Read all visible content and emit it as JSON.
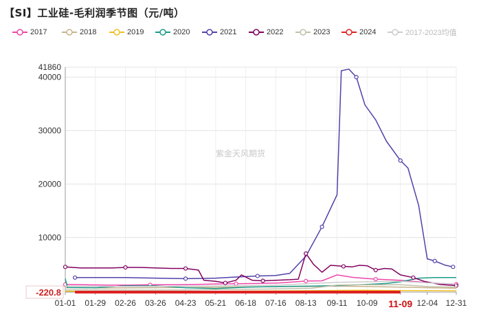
{
  "title": "【SI】工业硅-毛利润季节图（元/吨）",
  "watermark": "紫金天风期货",
  "chart_data": {
    "type": "line",
    "title": "【SI】工业硅-毛利润季节图（元/吨）",
    "xlabel": "",
    "ylabel": "",
    "ylim": [
      -220.8,
      41860
    ],
    "y_ticks": [
      "41860",
      "40000",
      "30000",
      "20000",
      "10000"
    ],
    "y_min_label": "-220.8",
    "x_ticks": [
      "01-01",
      "01-29",
      "02-26",
      "03-26",
      "04-23",
      "05-21",
      "06-18",
      "07-16",
      "08-13",
      "09-11",
      "10-09",
      "11-09",
      "12-04",
      "12-31"
    ],
    "x_ticks_doy": [
      1,
      29,
      57,
      85,
      113,
      141,
      169,
      197,
      225,
      254,
      282,
      313,
      338,
      365
    ],
    "highlight_x_label": "11-09",
    "highlight_x_doy": 313,
    "grid": true,
    "legend_position": "top",
    "series": [
      {
        "name": "2017",
        "color": "#ee44aa",
        "marker": true,
        "points": [
          [
            1,
            1200
          ],
          [
            20,
            1150
          ],
          [
            40,
            1100
          ],
          [
            60,
            1100
          ],
          [
            80,
            1150
          ],
          [
            100,
            1150
          ],
          [
            120,
            1200
          ],
          [
            141,
            1300
          ],
          [
            160,
            1350
          ],
          [
            180,
            1400
          ],
          [
            200,
            1500
          ],
          [
            215,
            1700
          ],
          [
            225,
            1850
          ],
          [
            240,
            1900
          ],
          [
            254,
            3000
          ],
          [
            270,
            2500
          ],
          [
            290,
            2200
          ],
          [
            313,
            2000
          ],
          [
            330,
            1700
          ],
          [
            350,
            1400
          ],
          [
            365,
            1250
          ]
        ]
      },
      {
        "name": "2018",
        "color": "#c8b48c",
        "marker": false,
        "points": [
          [
            1,
            600
          ],
          [
            40,
            550
          ],
          [
            80,
            600
          ],
          [
            120,
            650
          ],
          [
            141,
            700
          ],
          [
            170,
            750
          ],
          [
            200,
            800
          ],
          [
            230,
            850
          ],
          [
            254,
            900
          ],
          [
            280,
            850
          ],
          [
            313,
            700
          ],
          [
            340,
            600
          ],
          [
            365,
            500
          ]
        ]
      },
      {
        "name": "2019",
        "color": "#f0c020",
        "marker": false,
        "points": [
          [
            1,
            -50
          ],
          [
            40,
            -80
          ],
          [
            80,
            -60
          ],
          [
            120,
            -100
          ],
          [
            141,
            -50
          ],
          [
            170,
            -30
          ],
          [
            200,
            0
          ],
          [
            230,
            50
          ],
          [
            254,
            100
          ],
          [
            280,
            120
          ],
          [
            313,
            80
          ],
          [
            340,
            50
          ],
          [
            365,
            30
          ]
        ]
      },
      {
        "name": "2020",
        "color": "#1a9a8a",
        "marker": false,
        "points": [
          [
            1,
            2300
          ],
          [
            3,
            650
          ],
          [
            30,
            600
          ],
          [
            57,
            950
          ],
          [
            85,
            950
          ],
          [
            113,
            600
          ],
          [
            141,
            450
          ],
          [
            170,
            700
          ],
          [
            200,
            850
          ],
          [
            230,
            900
          ],
          [
            254,
            1000
          ],
          [
            280,
            1200
          ],
          [
            300,
            1400
          ],
          [
            313,
            1700
          ],
          [
            330,
            2400
          ],
          [
            345,
            2500
          ],
          [
            365,
            2500
          ]
        ]
      },
      {
        "name": "2021",
        "color": "#5040a8",
        "marker": true,
        "points": [
          [
            10,
            2500
          ],
          [
            30,
            2500
          ],
          [
            57,
            2500
          ],
          [
            85,
            2400
          ],
          [
            113,
            2300
          ],
          [
            130,
            2350
          ],
          [
            141,
            2400
          ],
          [
            160,
            2600
          ],
          [
            180,
            2800
          ],
          [
            197,
            2900
          ],
          [
            210,
            3300
          ],
          [
            225,
            6500
          ],
          [
            240,
            12000
          ],
          [
            254,
            18000
          ],
          [
            258,
            41200
          ],
          [
            265,
            41500
          ],
          [
            272,
            40000
          ],
          [
            280,
            34800
          ],
          [
            290,
            32000
          ],
          [
            300,
            28000
          ],
          [
            313,
            24400
          ],
          [
            320,
            23000
          ],
          [
            330,
            16000
          ],
          [
            338,
            6000
          ],
          [
            345,
            5600
          ],
          [
            355,
            4800
          ],
          [
            362,
            4500
          ]
        ]
      },
      {
        "name": "2022",
        "color": "#800060",
        "marker": true,
        "points": [
          [
            1,
            4500
          ],
          [
            15,
            4300
          ],
          [
            30,
            4300
          ],
          [
            45,
            4300
          ],
          [
            57,
            4400
          ],
          [
            70,
            4400
          ],
          [
            85,
            4300
          ],
          [
            100,
            4200
          ],
          [
            113,
            4200
          ],
          [
            125,
            3900
          ],
          [
            130,
            2000
          ],
          [
            141,
            1800
          ],
          [
            150,
            1500
          ],
          [
            160,
            2000
          ],
          [
            165,
            3000
          ],
          [
            175,
            2000
          ],
          [
            185,
            1900
          ],
          [
            197,
            2000
          ],
          [
            210,
            2100
          ],
          [
            218,
            2200
          ],
          [
            225,
            7000
          ],
          [
            232,
            5000
          ],
          [
            240,
            3500
          ],
          [
            248,
            4800
          ],
          [
            260,
            4600
          ],
          [
            268,
            4500
          ],
          [
            275,
            4800
          ],
          [
            282,
            4700
          ],
          [
            290,
            3900
          ],
          [
            298,
            4200
          ],
          [
            305,
            4100
          ],
          [
            313,
            3000
          ],
          [
            325,
            2500
          ],
          [
            335,
            1800
          ],
          [
            350,
            1200
          ],
          [
            365,
            1000
          ]
        ]
      },
      {
        "name": "2023",
        "color": "#c0c0a8",
        "marker": false,
        "points": [
          [
            1,
            200
          ],
          [
            40,
            180
          ],
          [
            80,
            150
          ],
          [
            120,
            200
          ],
          [
            141,
            250
          ],
          [
            170,
            300
          ],
          [
            200,
            400
          ],
          [
            230,
            500
          ],
          [
            254,
            1100
          ],
          [
            280,
            1150
          ],
          [
            313,
            1150
          ],
          [
            340,
            800
          ],
          [
            365,
            700
          ]
        ]
      },
      {
        "name": "2024",
        "color": "#dd2222",
        "marker": false,
        "points": [
          [
            10,
            -220.8
          ],
          [
            313,
            -220.8
          ]
        ]
      },
      {
        "name": "2017-2023均值",
        "color": "#cccccc",
        "marker": false,
        "points": [
          [
            1,
            900
          ],
          [
            40,
            850
          ],
          [
            80,
            850
          ],
          [
            120,
            900
          ],
          [
            141,
            950
          ],
          [
            170,
            1000
          ],
          [
            200,
            1100
          ],
          [
            230,
            1400
          ],
          [
            254,
            1600
          ],
          [
            280,
            1700
          ],
          [
            313,
            1800
          ],
          [
            340,
            1500
          ],
          [
            365,
            1300
          ]
        ]
      }
    ]
  }
}
